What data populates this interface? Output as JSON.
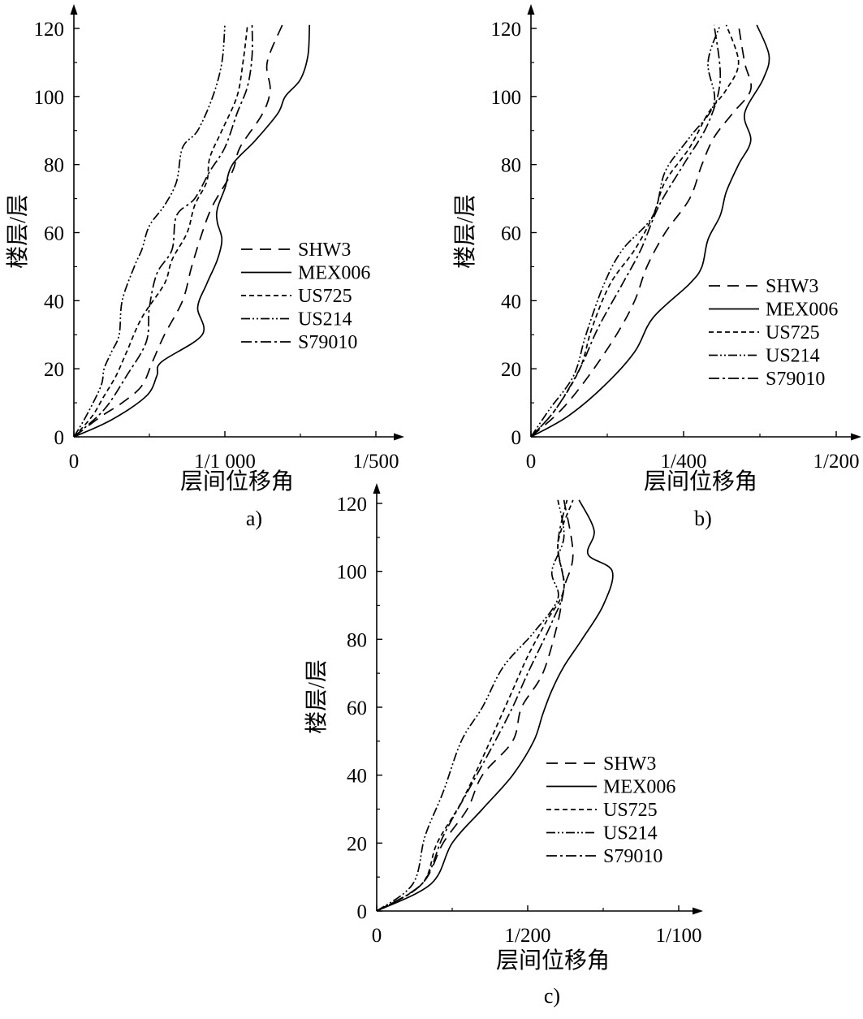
{
  "chart_data": [
    {
      "type": "line",
      "panel_label": "a)",
      "xlabel": "层间位移角",
      "ylabel": "楼层/层",
      "x_unit": "inter-story drift ratio (radians)",
      "xlim": [
        0,
        0.002
      ],
      "ylim": [
        0,
        120
      ],
      "xticks": [
        {
          "value": 0,
          "label": "0"
        },
        {
          "value": 0.001,
          "label": "1/1 000"
        },
        {
          "value": 0.002,
          "label": "1/500"
        }
      ],
      "yticks": [
        0,
        20,
        40,
        60,
        80,
        100,
        120
      ],
      "grid": false,
      "legend_position": "center-right",
      "series": [
        {
          "name": "SHW3",
          "style": "long-dash",
          "x": [
            0,
            0.00018,
            0.00032,
            0.00045,
            0.00052,
            0.0006,
            0.00072,
            0.00078,
            0.00085,
            0.00092,
            0.00105,
            0.0011,
            0.00125,
            0.0013,
            0.00128,
            0.00138
          ],
          "y": [
            0,
            6,
            10,
            15,
            22,
            30,
            40,
            50,
            60,
            68,
            78,
            85,
            95,
            102,
            110,
            121
          ]
        },
        {
          "name": "MEX006",
          "style": "solid",
          "x": [
            0,
            0.00025,
            0.00048,
            0.00055,
            0.00058,
            0.00085,
            0.00082,
            0.00088,
            0.00095,
            0.00098,
            0.00095,
            0.00095,
            0.001,
            0.00105,
            0.0012,
            0.00135,
            0.0014,
            0.0015,
            0.00155,
            0.00156
          ],
          "y": [
            0,
            5,
            12,
            18,
            22,
            30,
            38,
            45,
            52,
            58,
            63,
            67,
            73,
            80,
            87,
            95,
            100,
            105,
            112,
            121
          ]
        },
        {
          "name": "US725",
          "style": "short-dash",
          "x": [
            0,
            0.00012,
            0.0002,
            0.00028,
            0.00035,
            0.00045,
            0.0006,
            0.00065,
            0.00075,
            0.0008,
            0.00088,
            0.0009,
            0.00098,
            0.00108,
            0.00112,
            0.00115
          ],
          "y": [
            0,
            6,
            12,
            18,
            25,
            35,
            45,
            52,
            60,
            68,
            75,
            82,
            90,
            100,
            110,
            121
          ]
        },
        {
          "name": "US214",
          "style": "dash-dot-dot",
          "x": [
            0,
            8e-05,
            0.00018,
            0.0002,
            0.00025,
            0.0003,
            0.00032,
            0.0004,
            0.00045,
            0.0005,
            0.0006,
            0.00068,
            0.00072,
            0.00082,
            0.00092,
            0.00098,
            0.001
          ],
          "y": [
            0,
            6,
            15,
            20,
            25,
            30,
            40,
            50,
            55,
            62,
            68,
            75,
            85,
            90,
            100,
            110,
            121
          ]
        },
        {
          "name": "S79010",
          "style": "dash-dot",
          "x": [
            0,
            0.0002,
            0.00035,
            0.00048,
            0.0005,
            0.00055,
            0.00065,
            0.00068,
            0.0008,
            0.0009,
            0.001,
            0.00108,
            0.00115,
            0.00118,
            0.00118
          ],
          "y": [
            0,
            8,
            18,
            28,
            38,
            48,
            55,
            65,
            70,
            78,
            85,
            95,
            103,
            112,
            121
          ]
        }
      ]
    },
    {
      "type": "line",
      "panel_label": "b)",
      "xlabel": "层间位移角",
      "ylabel": "楼层/层",
      "x_unit": "inter-story drift ratio (radians)",
      "xlim": [
        0,
        0.005
      ],
      "ylim": [
        0,
        120
      ],
      "xticks": [
        {
          "value": 0,
          "label": "0"
        },
        {
          "value": 0.0025,
          "label": "1/400"
        },
        {
          "value": 0.005,
          "label": "1/200"
        }
      ],
      "yticks": [
        0,
        20,
        40,
        60,
        80,
        100,
        120
      ],
      "grid": false,
      "legend_position": "lower-right",
      "series": [
        {
          "name": "SHW3",
          "style": "long-dash",
          "x": [
            0,
            0.0005,
            0.00095,
            0.0014,
            0.0017,
            0.0019,
            0.0022,
            0.0026,
            0.0028,
            0.003,
            0.0033,
            0.0036,
            0.0035,
            0.0034
          ],
          "y": [
            0,
            8,
            18,
            30,
            40,
            50,
            60,
            70,
            80,
            88,
            95,
            102,
            110,
            121
          ]
        },
        {
          "name": "MEX006",
          "style": "solid",
          "x": [
            0,
            0.0006,
            0.0012,
            0.0017,
            0.002,
            0.0026,
            0.0028,
            0.0029,
            0.0031,
            0.0032,
            0.0034,
            0.0036,
            0.0035,
            0.0038,
            0.0039,
            0.0037
          ],
          "y": [
            0,
            6,
            15,
            25,
            35,
            45,
            50,
            58,
            65,
            72,
            80,
            87,
            95,
            105,
            112,
            121
          ]
        },
        {
          "name": "US725",
          "style": "short-dash",
          "x": [
            0,
            0.0004,
            0.0008,
            0.001,
            0.0013,
            0.0017,
            0.002,
            0.0022,
            0.0026,
            0.0029,
            0.0032,
            0.0034,
            0.0032
          ],
          "y": [
            0,
            8,
            20,
            32,
            45,
            55,
            65,
            75,
            85,
            95,
            102,
            110,
            121
          ]
        },
        {
          "name": "US214",
          "style": "dash-dot-dot",
          "x": [
            0,
            0.0003,
            0.0007,
            0.0009,
            0.0012,
            0.0015,
            0.002,
            0.0022,
            0.0026,
            0.003,
            0.0029,
            0.0031
          ],
          "y": [
            0,
            8,
            18,
            30,
            45,
            55,
            65,
            78,
            88,
            98,
            110,
            121
          ]
        },
        {
          "name": "S79010",
          "style": "dash-dot",
          "x": [
            0,
            0.0004,
            0.0008,
            0.0011,
            0.0015,
            0.0018,
            0.0021,
            0.0025,
            0.0029,
            0.0031,
            0.003
          ],
          "y": [
            0,
            8,
            20,
            32,
            45,
            55,
            68,
            80,
            92,
            105,
            121
          ]
        }
      ]
    },
    {
      "type": "line",
      "panel_label": "c)",
      "xlabel": "层间位移角",
      "ylabel": "楼层/层",
      "x_unit": "inter-story drift ratio (radians)",
      "xlim": [
        0,
        0.01
      ],
      "ylim": [
        0,
        120
      ],
      "xticks": [
        {
          "value": 0,
          "label": "0"
        },
        {
          "value": 0.005,
          "label": "1/200"
        },
        {
          "value": 0.01,
          "label": "1/100"
        }
      ],
      "yticks": [
        0,
        20,
        40,
        60,
        80,
        100,
        120
      ],
      "grid": false,
      "legend_position": "lower-right",
      "series": [
        {
          "name": "SHW3",
          "style": "long-dash",
          "x": [
            0,
            0.0015,
            0.0022,
            0.003,
            0.0035,
            0.0045,
            0.0048,
            0.0055,
            0.006,
            0.0062,
            0.0065,
            0.0062
          ],
          "y": [
            0,
            8,
            20,
            30,
            40,
            50,
            60,
            70,
            85,
            95,
            105,
            121
          ]
        },
        {
          "name": "MEX006",
          "style": "solid",
          "x": [
            0,
            0.0018,
            0.0025,
            0.0035,
            0.0045,
            0.0052,
            0.0055,
            0.0058,
            0.0062,
            0.0068,
            0.0075,
            0.0078,
            0.007,
            0.0072,
            0.0067
          ],
          "y": [
            0,
            8,
            20,
            30,
            40,
            50,
            58,
            65,
            72,
            80,
            90,
            100,
            105,
            112,
            121
          ]
        },
        {
          "name": "US725",
          "style": "short-dash",
          "x": [
            0,
            0.0015,
            0.002,
            0.0028,
            0.0035,
            0.004,
            0.0045,
            0.005,
            0.0056,
            0.0062,
            0.006,
            0.0065
          ],
          "y": [
            0,
            8,
            20,
            32,
            45,
            55,
            65,
            75,
            85,
            95,
            108,
            121
          ]
        },
        {
          "name": "US214",
          "style": "dash-dot-dot",
          "x": [
            0,
            0.0012,
            0.0016,
            0.0022,
            0.0028,
            0.0035,
            0.0042,
            0.0052,
            0.006,
            0.0058,
            0.0062,
            0.006
          ],
          "y": [
            0,
            8,
            22,
            35,
            50,
            60,
            72,
            82,
            92,
            100,
            110,
            121
          ]
        },
        {
          "name": "S79010",
          "style": "dash-dot",
          "x": [
            0,
            0.0015,
            0.0022,
            0.003,
            0.0038,
            0.0045,
            0.005,
            0.0058,
            0.0062,
            0.006,
            0.0063
          ],
          "y": [
            0,
            8,
            22,
            35,
            48,
            60,
            70,
            85,
            95,
            108,
            121
          ]
        }
      ]
    }
  ]
}
